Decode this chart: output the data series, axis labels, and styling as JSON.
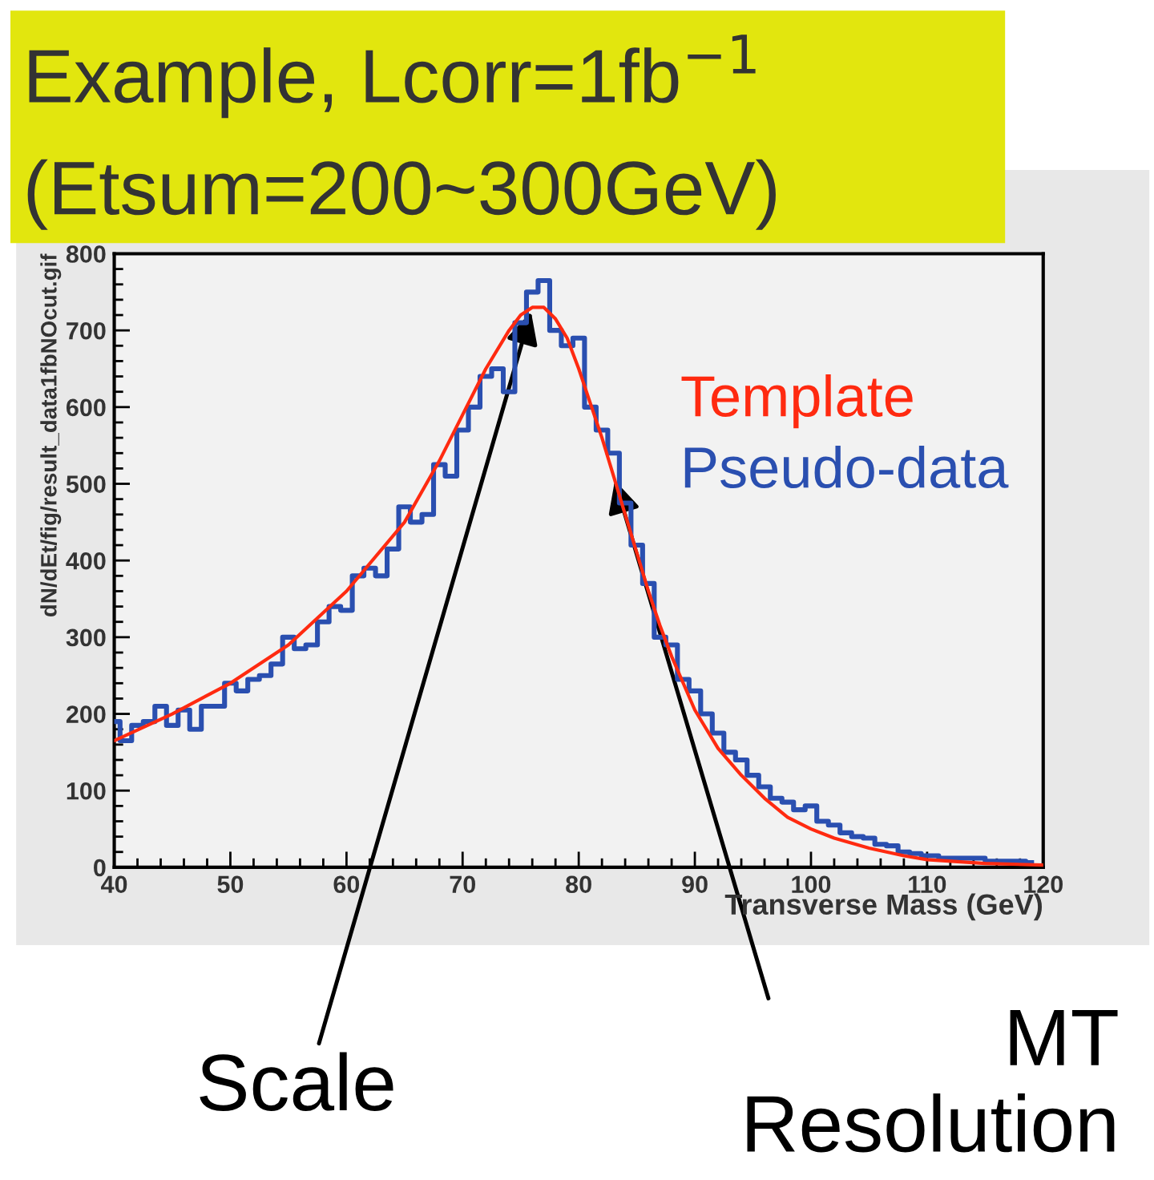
{
  "chart_data": {
    "type": "line",
    "title": "Example, Lcorr=1fb$^{−1}$",
    "subtitle": "(Etsum=200~300GeV)",
    "xlabel": "Transverse Mass (GeV)",
    "ylabel": "dN/dEt/fig/result_data1fbNOcut.gif",
    "xlim": [
      40,
      120
    ],
    "xticks": [
      40,
      50,
      60,
      70,
      80,
      90,
      100,
      110,
      120
    ],
    "ylim": [
      0,
      800
    ],
    "yticks": [
      0,
      100,
      200,
      300,
      400,
      500,
      600,
      700,
      800
    ],
    "grid": false,
    "legend": "right",
    "marker": "none",
    "series": [
      {
        "name": "Template",
        "color": "#ff2a10",
        "x": [
          40,
          45,
          50,
          55,
          60,
          65,
          68,
          70,
          72,
          74,
          75,
          76,
          77,
          78,
          79,
          80,
          81,
          82,
          83,
          84,
          85,
          86,
          87,
          88,
          89,
          90,
          92,
          94,
          96,
          98,
          100,
          102,
          105,
          108,
          110,
          115,
          120
        ],
        "values": [
          165,
          200,
          240,
          290,
          360,
          450,
          530,
          590,
          650,
          700,
          720,
          730,
          730,
          715,
          690,
          650,
          605,
          560,
          510,
          460,
          410,
          360,
          315,
          275,
          240,
          205,
          155,
          120,
          90,
          65,
          50,
          38,
          25,
          15,
          10,
          5,
          3
        ]
      },
      {
        "name": "Pseudo-data",
        "color": "#2a4fb0",
        "type": "step",
        "x": [
          40,
          41,
          42,
          43,
          44,
          45,
          46,
          47,
          48,
          49,
          50,
          51,
          52,
          53,
          54,
          55,
          56,
          57,
          58,
          59,
          60,
          61,
          62,
          63,
          64,
          65,
          66,
          67,
          68,
          69,
          70,
          71,
          72,
          73,
          74,
          75,
          76,
          77,
          78,
          79,
          80,
          81,
          82,
          83,
          84,
          85,
          86,
          87,
          88,
          89,
          90,
          91,
          92,
          93,
          94,
          95,
          96,
          97,
          98,
          99,
          100,
          101,
          102,
          103,
          104,
          105,
          106,
          107,
          108,
          109,
          110,
          112,
          114,
          116,
          118,
          119
        ],
        "values": [
          190,
          165,
          185,
          190,
          210,
          185,
          205,
          180,
          210,
          210,
          240,
          230,
          245,
          250,
          265,
          300,
          285,
          290,
          320,
          340,
          335,
          380,
          390,
          380,
          415,
          470,
          450,
          460,
          525,
          510,
          570,
          600,
          640,
          650,
          620,
          710,
          750,
          765,
          700,
          680,
          690,
          600,
          570,
          540,
          475,
          420,
          370,
          300,
          290,
          245,
          230,
          200,
          175,
          150,
          140,
          120,
          105,
          90,
          85,
          75,
          80,
          60,
          55,
          45,
          40,
          38,
          30,
          28,
          20,
          18,
          15,
          12,
          12,
          8,
          8,
          6
        ]
      }
    ],
    "annotations": [
      {
        "text": "Scale",
        "x": 76,
        "y": 730
      },
      {
        "text": "MT\nResolution",
        "x": 83,
        "y": 510
      }
    ]
  }
}
